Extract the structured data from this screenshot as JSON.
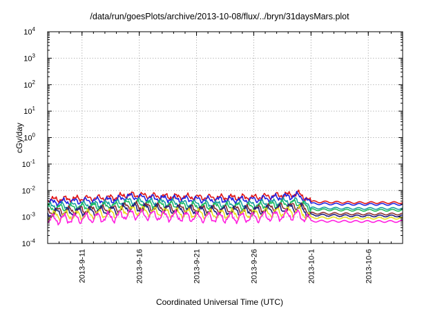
{
  "chart_data": {
    "type": "line",
    "title": "/data/run/goesPlots/archive/2013-10-08/flux/../bryn/31daysMars.plot",
    "xlabel": "Coordinated Universal Time (UTC)",
    "ylabel": "cGy/day",
    "x_range": [
      "2013-09-08",
      "2013-10-09"
    ],
    "y_scale": "log",
    "ylim": [
      0.0001,
      10000
    ],
    "grid": true,
    "x_ticks": [
      {
        "date": "2013-09-11",
        "label": "2013-9-11"
      },
      {
        "date": "2013-09-16",
        "label": "2013-9-16"
      },
      {
        "date": "2013-09-21",
        "label": "2013-9-21"
      },
      {
        "date": "2013-09-26",
        "label": "2013-9-26"
      },
      {
        "date": "2013-10-01",
        "label": "2013-10-1"
      },
      {
        "date": "2013-10-06",
        "label": "2013-10-6"
      }
    ],
    "y_ticks": [
      {
        "value": 0.0001,
        "base": "10",
        "exp": "-4"
      },
      {
        "value": 0.001,
        "base": "10",
        "exp": "-3"
      },
      {
        "value": 0.01,
        "base": "10",
        "exp": "-2"
      },
      {
        "value": 0.1,
        "base": "10",
        "exp": "-1"
      },
      {
        "value": 1,
        "base": "10",
        "exp": "0"
      },
      {
        "value": 10,
        "base": "10",
        "exp": "1"
      },
      {
        "value": 100,
        "base": "10",
        "exp": "2"
      },
      {
        "value": 1000,
        "base": "10",
        "exp": "3"
      },
      {
        "value": 10000,
        "base": "10",
        "exp": "4"
      }
    ],
    "series": [
      {
        "color": "#e01515",
        "x": [
          "2013-09-08",
          "2013-09-11",
          "2013-09-14",
          "2013-09-15",
          "2013-09-18",
          "2013-09-22",
          "2013-09-26",
          "2013-09-28",
          "2013-09-30",
          "2013-10-01",
          "2013-10-05",
          "2013-10-09"
        ],
        "values": [
          0.0045,
          0.005,
          0.0055,
          0.007,
          0.006,
          0.0055,
          0.0055,
          0.0065,
          0.0075,
          0.0038,
          0.0035,
          0.0035
        ]
      },
      {
        "color": "#2020e0",
        "x": [
          "2013-09-08",
          "2013-09-11",
          "2013-09-14",
          "2013-09-15",
          "2013-09-18",
          "2013-09-22",
          "2013-09-26",
          "2013-09-28",
          "2013-09-30",
          "2013-10-01",
          "2013-10-05",
          "2013-10-09"
        ],
        "values": [
          0.0035,
          0.004,
          0.0045,
          0.006,
          0.005,
          0.0045,
          0.0045,
          0.0055,
          0.0065,
          0.0032,
          0.003,
          0.003
        ]
      },
      {
        "color": "#1aa0a0",
        "x": [
          "2013-09-08",
          "2013-09-11",
          "2013-09-14",
          "2013-09-15",
          "2013-09-18",
          "2013-09-22",
          "2013-09-26",
          "2013-09-28",
          "2013-09-30",
          "2013-10-01",
          "2013-10-05",
          "2013-10-09"
        ],
        "values": [
          0.0025,
          0.0028,
          0.0032,
          0.004,
          0.0035,
          0.003,
          0.003,
          0.0036,
          0.004,
          0.0022,
          0.0021,
          0.0021
        ]
      },
      {
        "color": "#20c060",
        "x": [
          "2013-09-08",
          "2013-09-11",
          "2013-09-14",
          "2013-09-15",
          "2013-09-18",
          "2013-09-22",
          "2013-09-26",
          "2013-09-28",
          "2013-09-30",
          "2013-10-01",
          "2013-10-05",
          "2013-10-09"
        ],
        "values": [
          0.0021,
          0.0024,
          0.0027,
          0.0033,
          0.0029,
          0.0025,
          0.0025,
          0.003,
          0.0034,
          0.0019,
          0.0018,
          0.0018
        ]
      },
      {
        "color": "#8a3030",
        "x": [
          "2013-09-08",
          "2013-09-11",
          "2013-09-14",
          "2013-09-15",
          "2013-09-18",
          "2013-09-22",
          "2013-09-26",
          "2013-09-28",
          "2013-09-30",
          "2013-10-01",
          "2013-10-05",
          "2013-10-09"
        ],
        "values": [
          0.0016,
          0.0018,
          0.002,
          0.0026,
          0.0022,
          0.0019,
          0.0019,
          0.0023,
          0.0026,
          0.0014,
          0.0013,
          0.0013
        ]
      },
      {
        "color": "#202080",
        "x": [
          "2013-09-08",
          "2013-09-11",
          "2013-09-14",
          "2013-09-15",
          "2013-09-18",
          "2013-09-22",
          "2013-09-26",
          "2013-09-28",
          "2013-09-30",
          "2013-10-01",
          "2013-10-05",
          "2013-10-09"
        ],
        "values": [
          0.0014,
          0.0016,
          0.0018,
          0.0023,
          0.002,
          0.0017,
          0.0017,
          0.002,
          0.0023,
          0.0012,
          0.0011,
          0.0011
        ]
      },
      {
        "color": "#e8e020",
        "x": [
          "2013-09-08",
          "2013-09-11",
          "2013-09-14",
          "2013-09-15",
          "2013-09-18",
          "2013-09-22",
          "2013-09-26",
          "2013-09-28",
          "2013-09-30",
          "2013-10-01",
          "2013-10-05",
          "2013-10-09"
        ],
        "values": [
          0.0011,
          0.0012,
          0.0014,
          0.0018,
          0.0015,
          0.0013,
          0.0013,
          0.0015,
          0.0017,
          0.00095,
          0.0009,
          0.0009
        ]
      },
      {
        "color": "#ff20e0",
        "x": [
          "2013-09-08",
          "2013-09-11",
          "2013-09-14",
          "2013-09-15",
          "2013-09-18",
          "2013-09-22",
          "2013-09-26",
          "2013-09-28",
          "2013-09-30",
          "2013-10-01",
          "2013-10-05",
          "2013-10-09"
        ],
        "values": [
          0.0008,
          0.0009,
          0.001,
          0.0013,
          0.0011,
          0.00095,
          0.00095,
          0.0011,
          0.0012,
          0.0007,
          0.00068,
          0.00068
        ]
      }
    ]
  }
}
